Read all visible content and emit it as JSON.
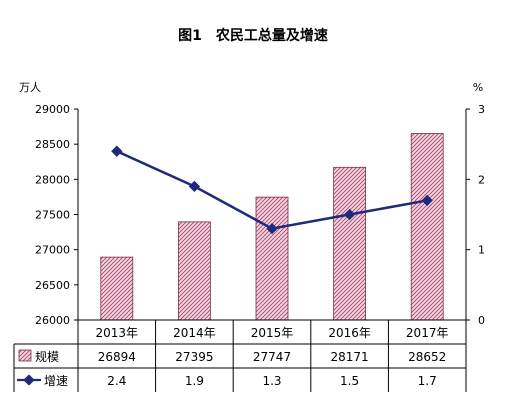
{
  "chart_data": {
    "type": "bar",
    "title": "图1　农民工总量及增速",
    "left_unit": "万人",
    "right_unit": "%",
    "categories": [
      "2013年",
      "2014年",
      "2015年",
      "2016年",
      "2017年"
    ],
    "series": [
      {
        "name": "规模",
        "type": "bar",
        "axis": "left",
        "values": [
          26894,
          27395,
          27747,
          28171,
          28652
        ]
      },
      {
        "name": "增速",
        "type": "line",
        "axis": "right",
        "values": [
          2.4,
          1.9,
          1.3,
          1.5,
          1.7
        ]
      }
    ],
    "left_axis": {
      "min": 26000,
      "max": 29000,
      "ticks": [
        26000,
        26500,
        27000,
        27500,
        28000,
        28500,
        29000
      ]
    },
    "right_axis": {
      "min": 0,
      "max": 3,
      "ticks": [
        0,
        1,
        2,
        3
      ]
    },
    "data_table": {
      "rows": [
        {
          "label": "规模",
          "values": [
            "26894",
            "27395",
            "27747",
            "28171",
            "28652"
          ]
        },
        {
          "label": "增速",
          "values": [
            "2.4",
            "1.9",
            "1.3",
            "1.5",
            "1.7"
          ]
        }
      ]
    },
    "colors": {
      "bar_fill": "#f2d3e0",
      "bar_hatch": "#a04060",
      "bar_stroke": "#7a2a45",
      "line": "#1f2a7a"
    },
    "grid": false
  }
}
